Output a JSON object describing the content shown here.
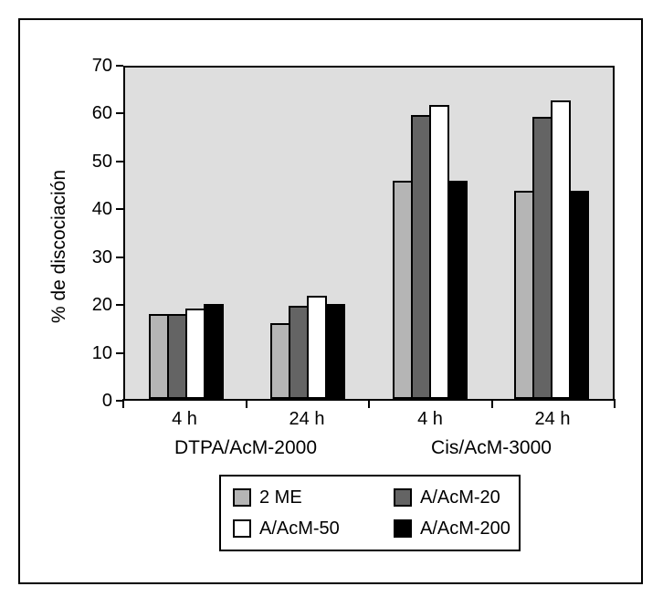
{
  "chart_data": {
    "type": "bar",
    "title": "",
    "ylabel": "% de discociación",
    "xlabel": "",
    "ylim": [
      0,
      70
    ],
    "yticks": [
      0,
      10,
      20,
      30,
      40,
      50,
      60,
      70
    ],
    "categories": [
      "4 h",
      "24 h",
      "4 h",
      "24 h"
    ],
    "section_labels": [
      "DTPA/AcM-2000",
      "Cis/AcM-3000"
    ],
    "sections": [
      {
        "label": "DTPA/AcM-2000",
        "categories": [
          "4 h",
          "24 h"
        ]
      },
      {
        "label": "Cis/AcM-3000",
        "categories": [
          "4 h",
          "24 h"
        ]
      }
    ],
    "series": [
      {
        "name": "2 ME",
        "color": "#b5b5b5",
        "values": [
          18,
          16,
          46,
          44
        ]
      },
      {
        "name": "A/AcM-20",
        "color": "#646464",
        "values": [
          18,
          19.7,
          60,
          59.5
        ]
      },
      {
        "name": "A/AcM-50",
        "color": "#ffffff",
        "values": [
          19,
          21.8,
          62,
          63
        ]
      },
      {
        "name": "A/AcM-200",
        "color": "#000000",
        "values": [
          20,
          20,
          46,
          44
        ]
      }
    ],
    "grid": false,
    "legend_position": "bottom",
    "plot_background": "#dedede",
    "bar_border_color": "#000000"
  }
}
